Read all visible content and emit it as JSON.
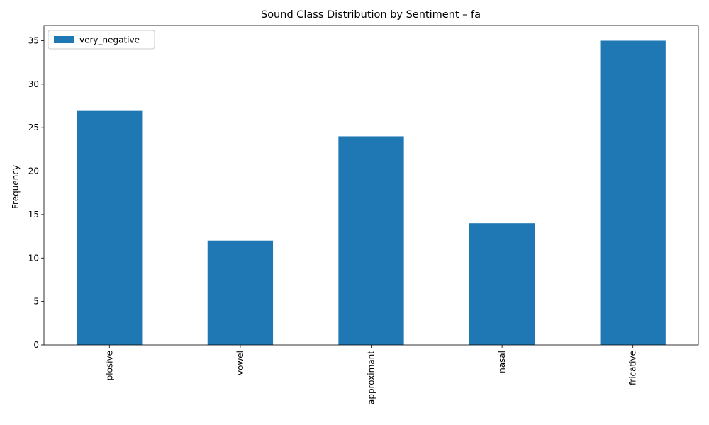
{
  "chart_data": {
    "type": "bar",
    "title": "Sound Class Distribution by Sentiment – fa",
    "xlabel": "",
    "ylabel": "Frequency",
    "categories": [
      "plosive",
      "vowel",
      "approximant",
      "nasal",
      "fricative"
    ],
    "series": [
      {
        "name": "very_negative",
        "values": [
          27,
          12,
          24,
          14,
          35
        ],
        "color": "#1f77b4"
      }
    ],
    "ylim": [
      0,
      36.75
    ],
    "yticks": [
      0,
      5,
      10,
      15,
      20,
      25,
      30,
      35
    ],
    "grid": false,
    "legend_position": "top-left",
    "x_tick_rotation": "vertical"
  }
}
